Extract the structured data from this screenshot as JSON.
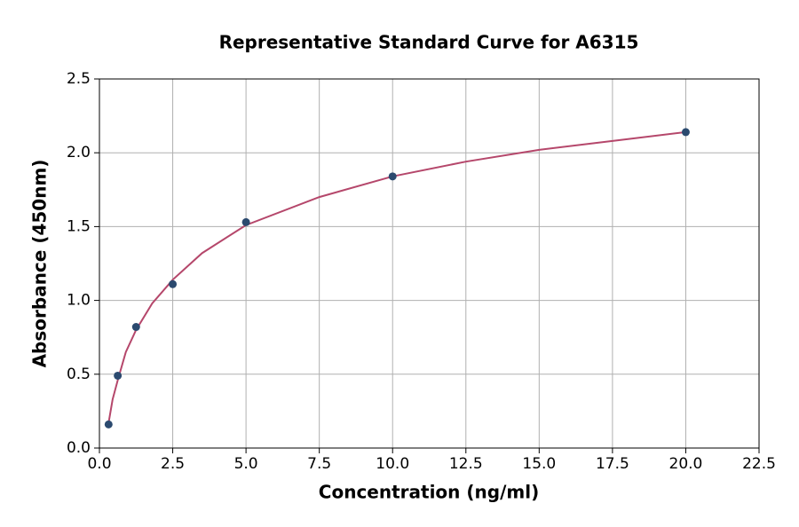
{
  "chart_data": {
    "type": "scatter",
    "title": "Representative Standard Curve for A6315",
    "x_label": "Concentration (ng/ml)",
    "y_label": "Absorbance (450nm)",
    "x": [
      0.3125,
      0.625,
      1.25,
      2.5,
      5,
      10,
      20
    ],
    "values": [
      0.16,
      0.49,
      0.82,
      1.11,
      1.53,
      1.84,
      2.14
    ],
    "color": "#2b4a6f",
    "fit": {
      "x": [
        0.3125,
        0.45,
        0.625,
        0.9,
        1.25,
        1.8,
        2.5,
        3.5,
        5,
        7.5,
        10,
        12.5,
        15,
        17.5,
        20
      ],
      "values": [
        0.17,
        0.33,
        0.46,
        0.65,
        0.8,
        0.98,
        1.14,
        1.32,
        1.51,
        1.7,
        1.84,
        1.94,
        2.02,
        2.08,
        2.14
      ],
      "color": "#b5476b"
    },
    "xlim": [
      0,
      22.5
    ],
    "ylim": [
      0,
      2.5
    ],
    "xticks": [
      {
        "value": 0,
        "label": "0.0"
      },
      2.5,
      {
        "value": 5,
        "label": "5.0"
      },
      7.5,
      {
        "value": 10,
        "label": "10.0"
      },
      12.5,
      {
        "value": 15,
        "label": "15.0"
      },
      17.5,
      {
        "value": 20,
        "label": "20.0"
      },
      22.5
    ],
    "yticks": [
      {
        "value": 0,
        "label": "0.0"
      },
      0.5,
      {
        "value": 1,
        "label": "1.0"
      },
      1.5,
      {
        "value": 2,
        "label": "2.0"
      },
      2.5
    ],
    "grid": true
  }
}
